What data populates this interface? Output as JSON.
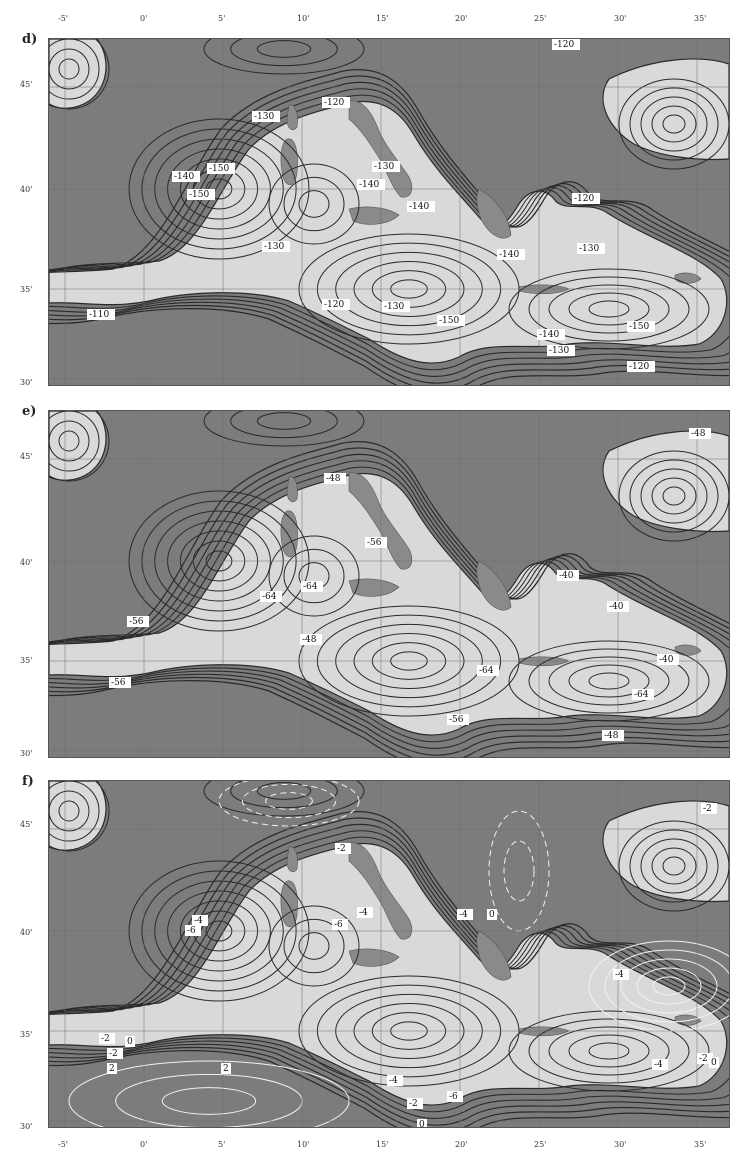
{
  "colors": {
    "sea": "#7c7c7c",
    "land_fill": "#d9d9d9",
    "contour_dark": "#2a2a2a",
    "contour_light": "#f2f2f2",
    "label_bg": "#ffffff"
  },
  "top_lon_ticks": [
    "-5'",
    "0'",
    "5'",
    "10'",
    "15'",
    "20'",
    "25'",
    "30'",
    "35'"
  ],
  "bottom_lon_ticks": [
    "-5'",
    "0'",
    "5'",
    "10'",
    "15'",
    "20'",
    "25'",
    "30'",
    "35'"
  ],
  "lat_ticks": [
    "45'",
    "40'",
    "35'",
    "30'"
  ],
  "panels": [
    {
      "letter": "d)",
      "labels": [
        "-120",
        "-150",
        "-130",
        "-120",
        "-140",
        "-150",
        "-140",
        "-130",
        "-120",
        "-140",
        "-140",
        "-130",
        "-130",
        "-130",
        "-110",
        "-120",
        "-150",
        "-140",
        "-150",
        "-130",
        "-120"
      ]
    },
    {
      "letter": "e)",
      "labels": [
        "-48",
        "-48",
        "-56",
        "-64",
        "-64",
        "-56",
        "-48",
        "-40",
        "-40",
        "-56",
        "-64",
        "-64",
        "-56",
        "-48",
        "-40"
      ]
    },
    {
      "letter": "f)",
      "labels": [
        "-2",
        "-2",
        "-4",
        "-6",
        "-4",
        "-6",
        "0",
        "-4",
        "-4",
        "-2",
        "0",
        "2",
        "2",
        "-6",
        "-4",
        "-2",
        "0",
        "-4",
        "-2",
        "0",
        "-2"
      ]
    }
  ]
}
